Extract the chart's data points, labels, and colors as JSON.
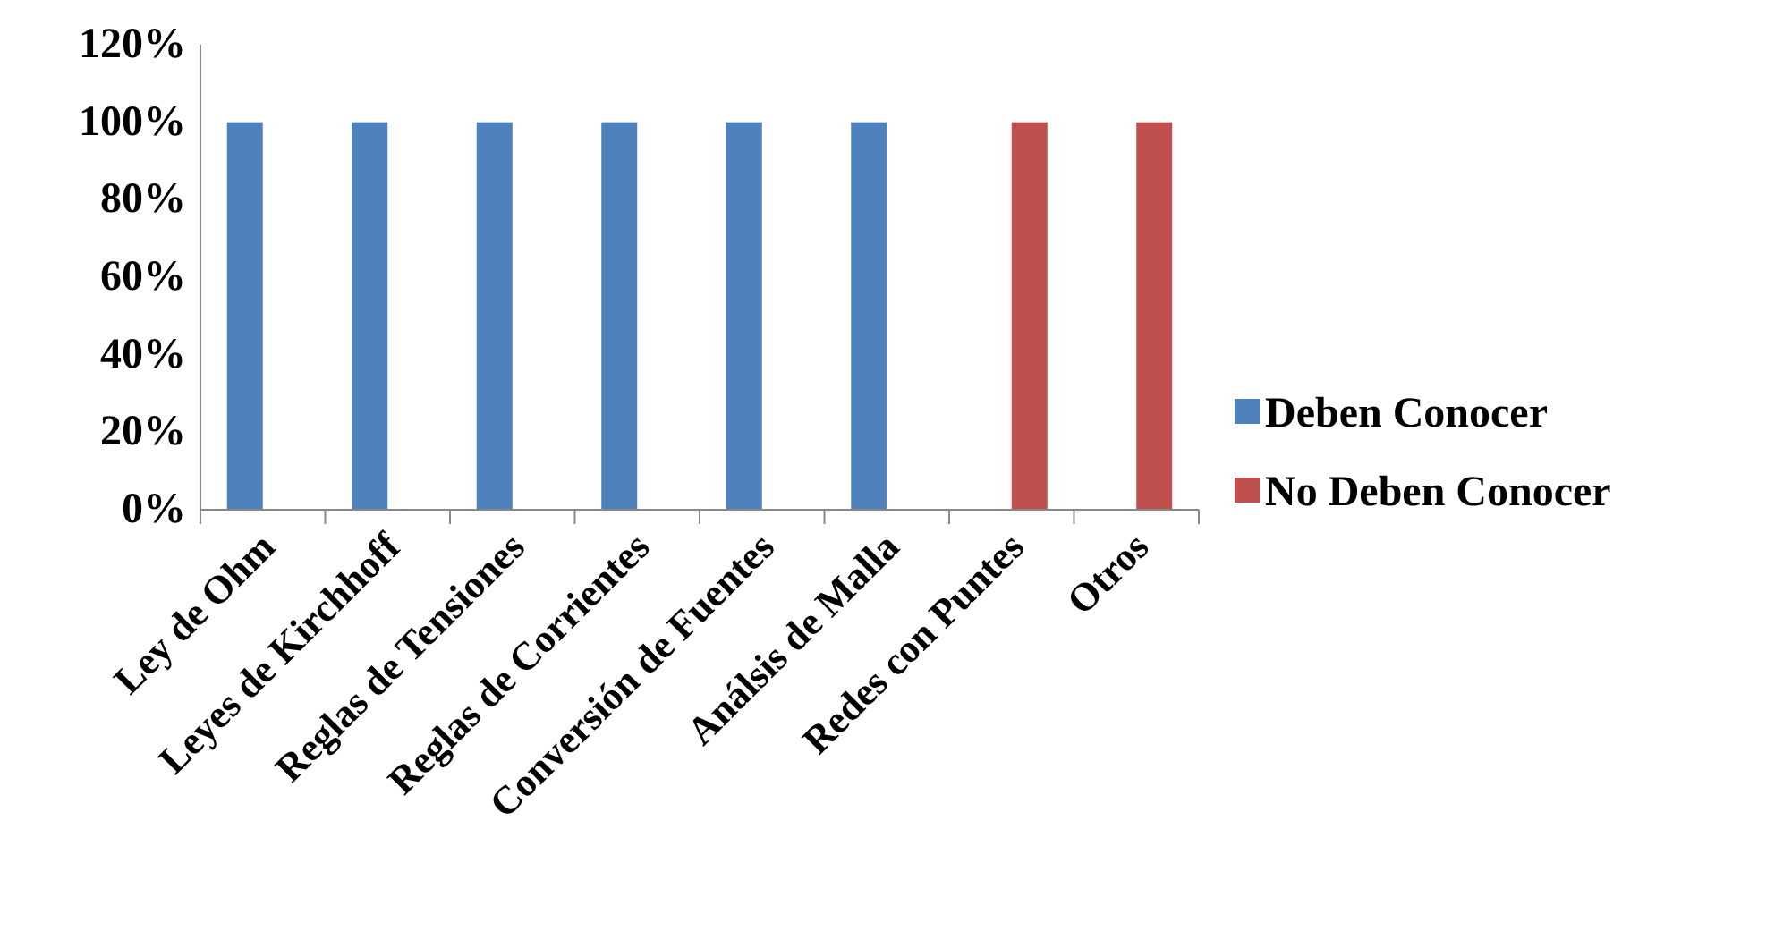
{
  "chart_data": {
    "type": "bar",
    "categories": [
      "Ley de Ohm",
      "Leyes de Kirchhoff",
      "Reglas de Tensiones",
      "Reglas de Corrientes",
      "Conversión de Fuentes",
      "Análsis de Malla",
      "Redes con Puntes",
      "Otros"
    ],
    "series": [
      {
        "name": "Deben Conocer",
        "color": "#4f81bd",
        "values": [
          1,
          1,
          1,
          1,
          1,
          1,
          null,
          null
        ]
      },
      {
        "name": "No Deben Conocer",
        "color": "#c0504d",
        "values": [
          null,
          null,
          null,
          null,
          null,
          null,
          1,
          1
        ]
      }
    ],
    "ylim": [
      0,
      1.2
    ],
    "yticks": [
      {
        "value": 0,
        "label": "0%"
      },
      {
        "value": 0.2,
        "label": "20%"
      },
      {
        "value": 0.4,
        "label": "40%"
      },
      {
        "value": 0.6,
        "label": "60%"
      },
      {
        "value": 0.8,
        "label": "80%"
      },
      {
        "value": 1,
        "label": "100%"
      },
      {
        "value": 1.2,
        "label": "120%"
      }
    ],
    "grid": false,
    "legend": "right"
  }
}
